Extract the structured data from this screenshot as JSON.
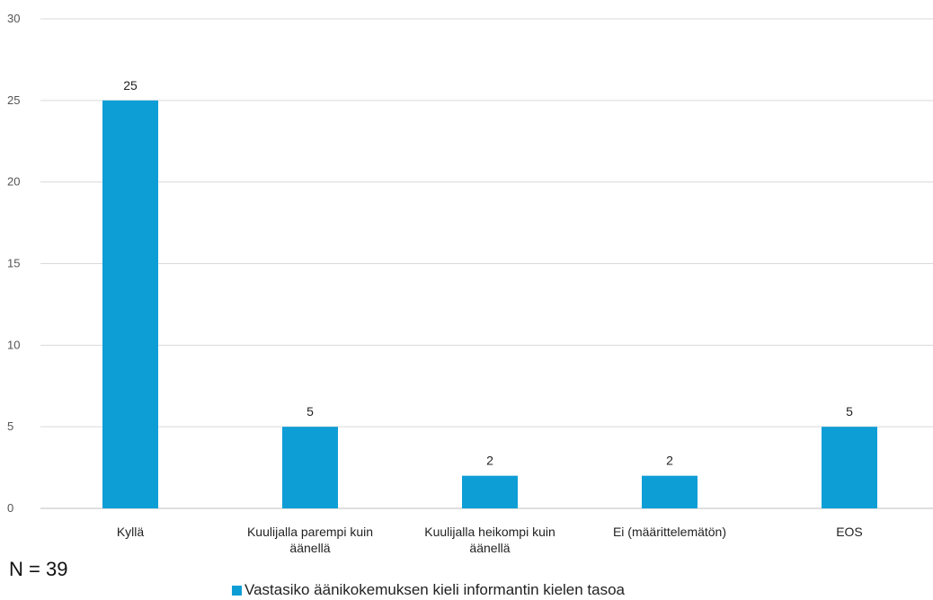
{
  "chart_data": {
    "type": "bar",
    "categories": [
      [
        "Kyllä"
      ],
      [
        "Kuulijalla parempi kuin",
        "äänellä"
      ],
      [
        "Kuulijalla heikompi kuin",
        "äänellä"
      ],
      [
        "Ei (määrittelemätön)"
      ],
      [
        "EOS"
      ]
    ],
    "values": [
      25,
      5,
      2,
      2,
      5
    ],
    "data_labels": [
      "25",
      "5",
      "2",
      "2",
      "5"
    ],
    "series": [
      {
        "name": "Vastasiko äänikokemuksen kieli informantin kielen tasoa",
        "values": [
          25,
          5,
          2,
          2,
          5
        ]
      }
    ],
    "ylim": [
      0,
      30
    ],
    "yticks": [
      "0",
      "5",
      "10",
      "15",
      "20",
      "25",
      "30"
    ],
    "grid": true,
    "legend_position": "bottom",
    "bar_color": "#0e9ed6",
    "annotation": "N = 39"
  }
}
